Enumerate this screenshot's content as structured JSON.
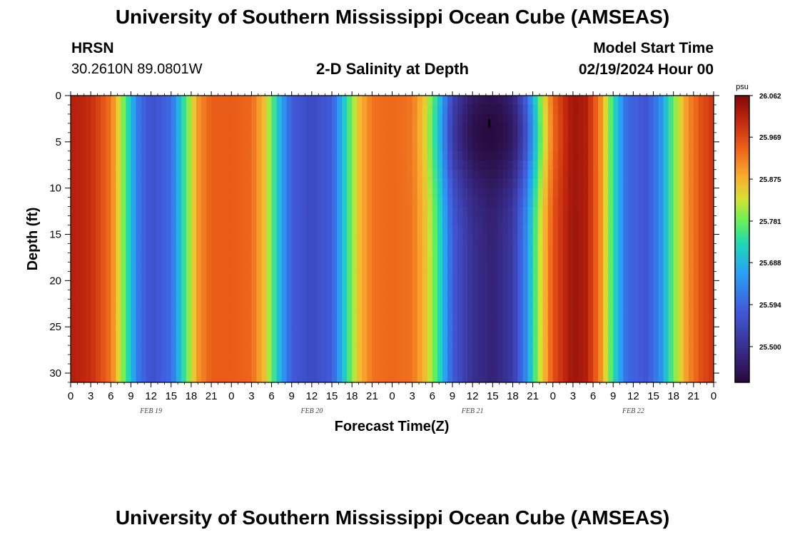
{
  "header": {
    "title": "University of Southern Mississippi Ocean Cube (AMSEAS)",
    "station": "HRSN",
    "location": "30.2610N  89.0801W",
    "plot_title": "2-D Salinity at Depth",
    "model_start_label": "Model Start Time",
    "model_start_value": "02/19/2024 Hour 00"
  },
  "footer": {
    "title": "University of Southern Mississippi Ocean Cube (AMSEAS)"
  },
  "chart_data": {
    "type": "heatmap",
    "title": "2-D Salinity at Depth",
    "xlabel": "Forecast Time(Z)",
    "ylabel": "Depth (ft)",
    "units": "psu",
    "x_range_hours": [
      0,
      96
    ],
    "y_range_ft": [
      0,
      31
    ],
    "x_tick_labels": [
      "0",
      "3",
      "6",
      "9",
      "12",
      "15",
      "18",
      "21",
      "0",
      "3",
      "6",
      "9",
      "12",
      "15",
      "18",
      "21",
      "0",
      "3",
      "6",
      "9",
      "12",
      "15",
      "18",
      "21",
      "0",
      "3",
      "6",
      "9",
      "12",
      "15",
      "18",
      "21",
      "0"
    ],
    "y_ticks": [
      0,
      5,
      10,
      15,
      20,
      25,
      30
    ],
    "y_tick_labels": [
      "0",
      "5",
      "10",
      "15",
      "20",
      "25",
      "30"
    ],
    "date_labels": [
      {
        "hour": 12,
        "text": "FEB 19"
      },
      {
        "hour": 36,
        "text": "FEB 20"
      },
      {
        "hour": 60,
        "text": "FEB 21"
      },
      {
        "hour": 84,
        "text": "FEB 22"
      }
    ],
    "colorbar": {
      "min": 25.42,
      "max": 26.062,
      "tick_values": [
        26.062,
        25.969,
        25.875,
        25.781,
        25.688,
        25.594,
        25.5
      ],
      "tick_labels": [
        "26.062",
        "25.969",
        "25.875",
        "25.781",
        "25.688",
        "25.594",
        "25.500"
      ]
    },
    "surface_salinity_by_hour": [
      [
        0,
        26.02
      ],
      [
        3,
        26.0
      ],
      [
        6,
        25.93
      ],
      [
        8,
        25.78
      ],
      [
        10,
        25.62
      ],
      [
        12,
        25.56
      ],
      [
        15,
        25.6
      ],
      [
        17,
        25.75
      ],
      [
        19,
        25.9
      ],
      [
        21,
        25.95
      ],
      [
        24,
        25.95
      ],
      [
        27,
        25.94
      ],
      [
        29,
        25.86
      ],
      [
        31,
        25.7
      ],
      [
        33,
        25.58
      ],
      [
        36,
        25.55
      ],
      [
        39,
        25.58
      ],
      [
        41,
        25.72
      ],
      [
        43,
        25.86
      ],
      [
        45,
        25.93
      ],
      [
        48,
        25.94
      ],
      [
        51,
        25.93
      ],
      [
        53,
        25.86
      ],
      [
        55,
        25.74
      ],
      [
        57,
        25.58
      ],
      [
        60,
        25.5
      ],
      [
        63,
        25.47
      ],
      [
        66,
        25.52
      ],
      [
        68,
        25.64
      ],
      [
        70,
        25.82
      ],
      [
        72,
        25.96
      ],
      [
        75,
        26.04
      ],
      [
        77,
        26.02
      ],
      [
        79,
        25.92
      ],
      [
        81,
        25.74
      ],
      [
        83,
        25.6
      ],
      [
        86,
        25.57
      ],
      [
        88,
        25.64
      ],
      [
        90,
        25.78
      ],
      [
        92,
        25.9
      ],
      [
        94,
        25.96
      ],
      [
        96,
        25.99
      ]
    ],
    "fresh_pocket": {
      "center_hour": 62.5,
      "center_depth_ft": 4,
      "min_value": 25.42,
      "depth_extent_ft": 12
    },
    "marker": {
      "hour": 62.5,
      "depth_ft": 3
    }
  }
}
